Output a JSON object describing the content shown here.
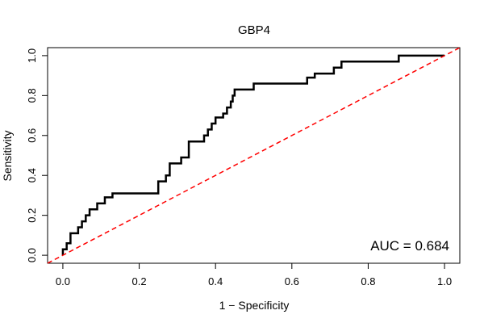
{
  "chart_data": {
    "type": "line",
    "title": "GBP4",
    "xlabel": "1 − Specificity",
    "ylabel": "Sensitivity",
    "xlim": [
      -0.04,
      1.04
    ],
    "ylim": [
      -0.04,
      1.04
    ],
    "xticks": [
      0.0,
      0.2,
      0.4,
      0.6,
      0.8,
      1.0
    ],
    "yticks": [
      0.0,
      0.2,
      0.4,
      0.6,
      0.8,
      1.0
    ],
    "xtick_labels": [
      "0.0",
      "0.2",
      "0.4",
      "0.6",
      "0.8",
      "1.0"
    ],
    "ytick_labels": [
      "0.0",
      "0.2",
      "0.4",
      "0.6",
      "0.8",
      "1.0"
    ],
    "grid": false,
    "annotation": "AUC = 0.684",
    "series": [
      {
        "color": "#000000",
        "points": [
          [
            0.0,
            0.0
          ],
          [
            0.0,
            0.03
          ],
          [
            0.01,
            0.03
          ],
          [
            0.01,
            0.06
          ],
          [
            0.02,
            0.06
          ],
          [
            0.02,
            0.11
          ],
          [
            0.04,
            0.11
          ],
          [
            0.04,
            0.14
          ],
          [
            0.05,
            0.14
          ],
          [
            0.05,
            0.17
          ],
          [
            0.06,
            0.17
          ],
          [
            0.06,
            0.2
          ],
          [
            0.07,
            0.2
          ],
          [
            0.07,
            0.23
          ],
          [
            0.09,
            0.23
          ],
          [
            0.09,
            0.26
          ],
          [
            0.11,
            0.26
          ],
          [
            0.11,
            0.29
          ],
          [
            0.13,
            0.29
          ],
          [
            0.13,
            0.31
          ],
          [
            0.25,
            0.31
          ],
          [
            0.25,
            0.37
          ],
          [
            0.27,
            0.37
          ],
          [
            0.27,
            0.4
          ],
          [
            0.28,
            0.4
          ],
          [
            0.28,
            0.46
          ],
          [
            0.31,
            0.46
          ],
          [
            0.31,
            0.49
          ],
          [
            0.33,
            0.49
          ],
          [
            0.33,
            0.57
          ],
          [
            0.37,
            0.57
          ],
          [
            0.37,
            0.6
          ],
          [
            0.38,
            0.6
          ],
          [
            0.38,
            0.63
          ],
          [
            0.39,
            0.63
          ],
          [
            0.39,
            0.66
          ],
          [
            0.4,
            0.66
          ],
          [
            0.4,
            0.69
          ],
          [
            0.42,
            0.69
          ],
          [
            0.42,
            0.71
          ],
          [
            0.43,
            0.71
          ],
          [
            0.43,
            0.74
          ],
          [
            0.44,
            0.74
          ],
          [
            0.44,
            0.77
          ],
          [
            0.445,
            0.77
          ],
          [
            0.445,
            0.8
          ],
          [
            0.45,
            0.8
          ],
          [
            0.45,
            0.83
          ],
          [
            0.5,
            0.83
          ],
          [
            0.5,
            0.86
          ],
          [
            0.64,
            0.86
          ],
          [
            0.64,
            0.89
          ],
          [
            0.66,
            0.89
          ],
          [
            0.66,
            0.91
          ],
          [
            0.71,
            0.91
          ],
          [
            0.71,
            0.94
          ],
          [
            0.73,
            0.94
          ],
          [
            0.73,
            0.97
          ],
          [
            0.88,
            0.97
          ],
          [
            0.88,
            1.0
          ],
          [
            1.0,
            1.0
          ]
        ]
      },
      {
        "color": "#ff0000",
        "style": "dashed",
        "points": [
          [
            -0.04,
            -0.04
          ],
          [
            1.04,
            1.04
          ]
        ]
      }
    ]
  }
}
